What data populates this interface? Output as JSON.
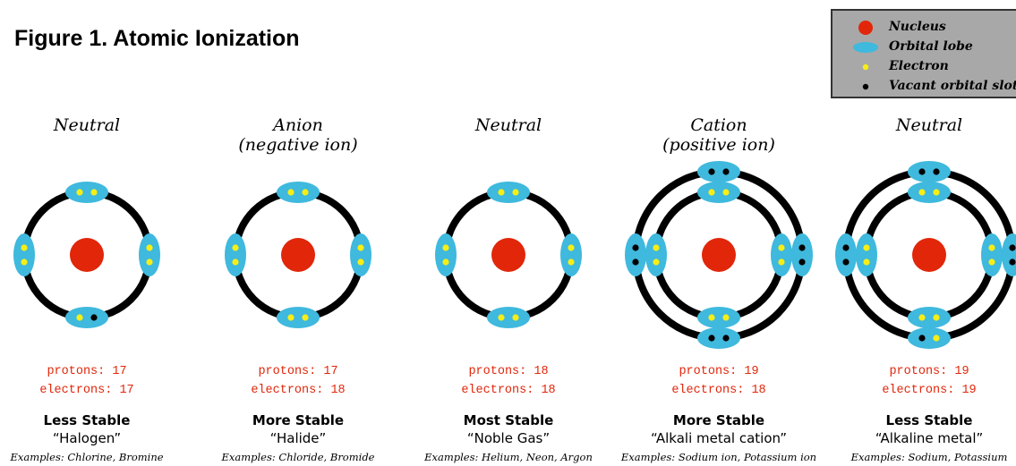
{
  "title": "Figure 1. Atomic Ionization",
  "legend": {
    "nucleus": "Nucleus",
    "orbital_lobe": "Orbital lobe",
    "electron": "Electron",
    "vacant_slot": "Vacant orbital slot"
  },
  "colors": {
    "nucleus": "#e1260a",
    "lobe": "#3fb9dd",
    "electron": "#f7ee16",
    "vacant": "#000000",
    "ring": "#000000",
    "count_text": "#e1260a",
    "legend_bg": "#a8a8a8"
  },
  "atoms": [
    {
      "header_lines": [
        "Neutral"
      ],
      "protons": "protons: 17",
      "electrons": "electrons: 17",
      "stability": "Less Stable",
      "category": "“Halogen”",
      "examples": "Examples: Chlorine, Bromine",
      "shells": [
        {
          "top": [
            "e",
            "e"
          ],
          "left": [
            "e",
            "e"
          ],
          "right": [
            "e",
            "e"
          ],
          "bottom": [
            "e",
            "v"
          ]
        }
      ]
    },
    {
      "header_lines": [
        "Anion",
        "(negative ion)"
      ],
      "protons": "protons: 17",
      "electrons": "electrons: 18",
      "stability": "More Stable",
      "category": "“Halide”",
      "examples": "Examples: Chloride, Bromide",
      "shells": [
        {
          "top": [
            "e",
            "e"
          ],
          "left": [
            "e",
            "e"
          ],
          "right": [
            "e",
            "e"
          ],
          "bottom": [
            "e",
            "e"
          ]
        }
      ]
    },
    {
      "header_lines": [
        "Neutral"
      ],
      "protons": "protons: 18",
      "electrons": "electrons: 18",
      "stability": "Most Stable",
      "category": "“Noble Gas”",
      "examples": "Examples: Helium, Neon, Argon",
      "shells": [
        {
          "top": [
            "e",
            "e"
          ],
          "left": [
            "e",
            "e"
          ],
          "right": [
            "e",
            "e"
          ],
          "bottom": [
            "e",
            "e"
          ]
        }
      ]
    },
    {
      "header_lines": [
        "Cation",
        "(positive ion)"
      ],
      "protons": "protons: 19",
      "electrons": "electrons: 18",
      "stability": "More Stable",
      "category": "“Alkali metal cation”",
      "examples": "Examples: Sodium ion, Potassium ion",
      "shells": [
        {
          "top": [
            "e",
            "e"
          ],
          "left": [
            "e",
            "e"
          ],
          "right": [
            "e",
            "e"
          ],
          "bottom": [
            "e",
            "e"
          ]
        },
        {
          "top": [
            "v",
            "v"
          ],
          "left": [
            "v",
            "v"
          ],
          "right": [
            "v",
            "v"
          ],
          "bottom": [
            "v",
            "v"
          ]
        }
      ]
    },
    {
      "header_lines": [
        "Neutral"
      ],
      "protons": "protons: 19",
      "electrons": "electrons: 19",
      "stability": "Less Stable",
      "category": "“Alkaline metal”",
      "examples": "Examples: Sodium, Potassium",
      "shells": [
        {
          "top": [
            "e",
            "e"
          ],
          "left": [
            "e",
            "e"
          ],
          "right": [
            "e",
            "e"
          ],
          "bottom": [
            "e",
            "e"
          ]
        },
        {
          "top": [
            "v",
            "v"
          ],
          "left": [
            "v",
            "v"
          ],
          "right": [
            "v",
            "v"
          ],
          "bottom": [
            "v",
            "e"
          ]
        }
      ]
    }
  ]
}
